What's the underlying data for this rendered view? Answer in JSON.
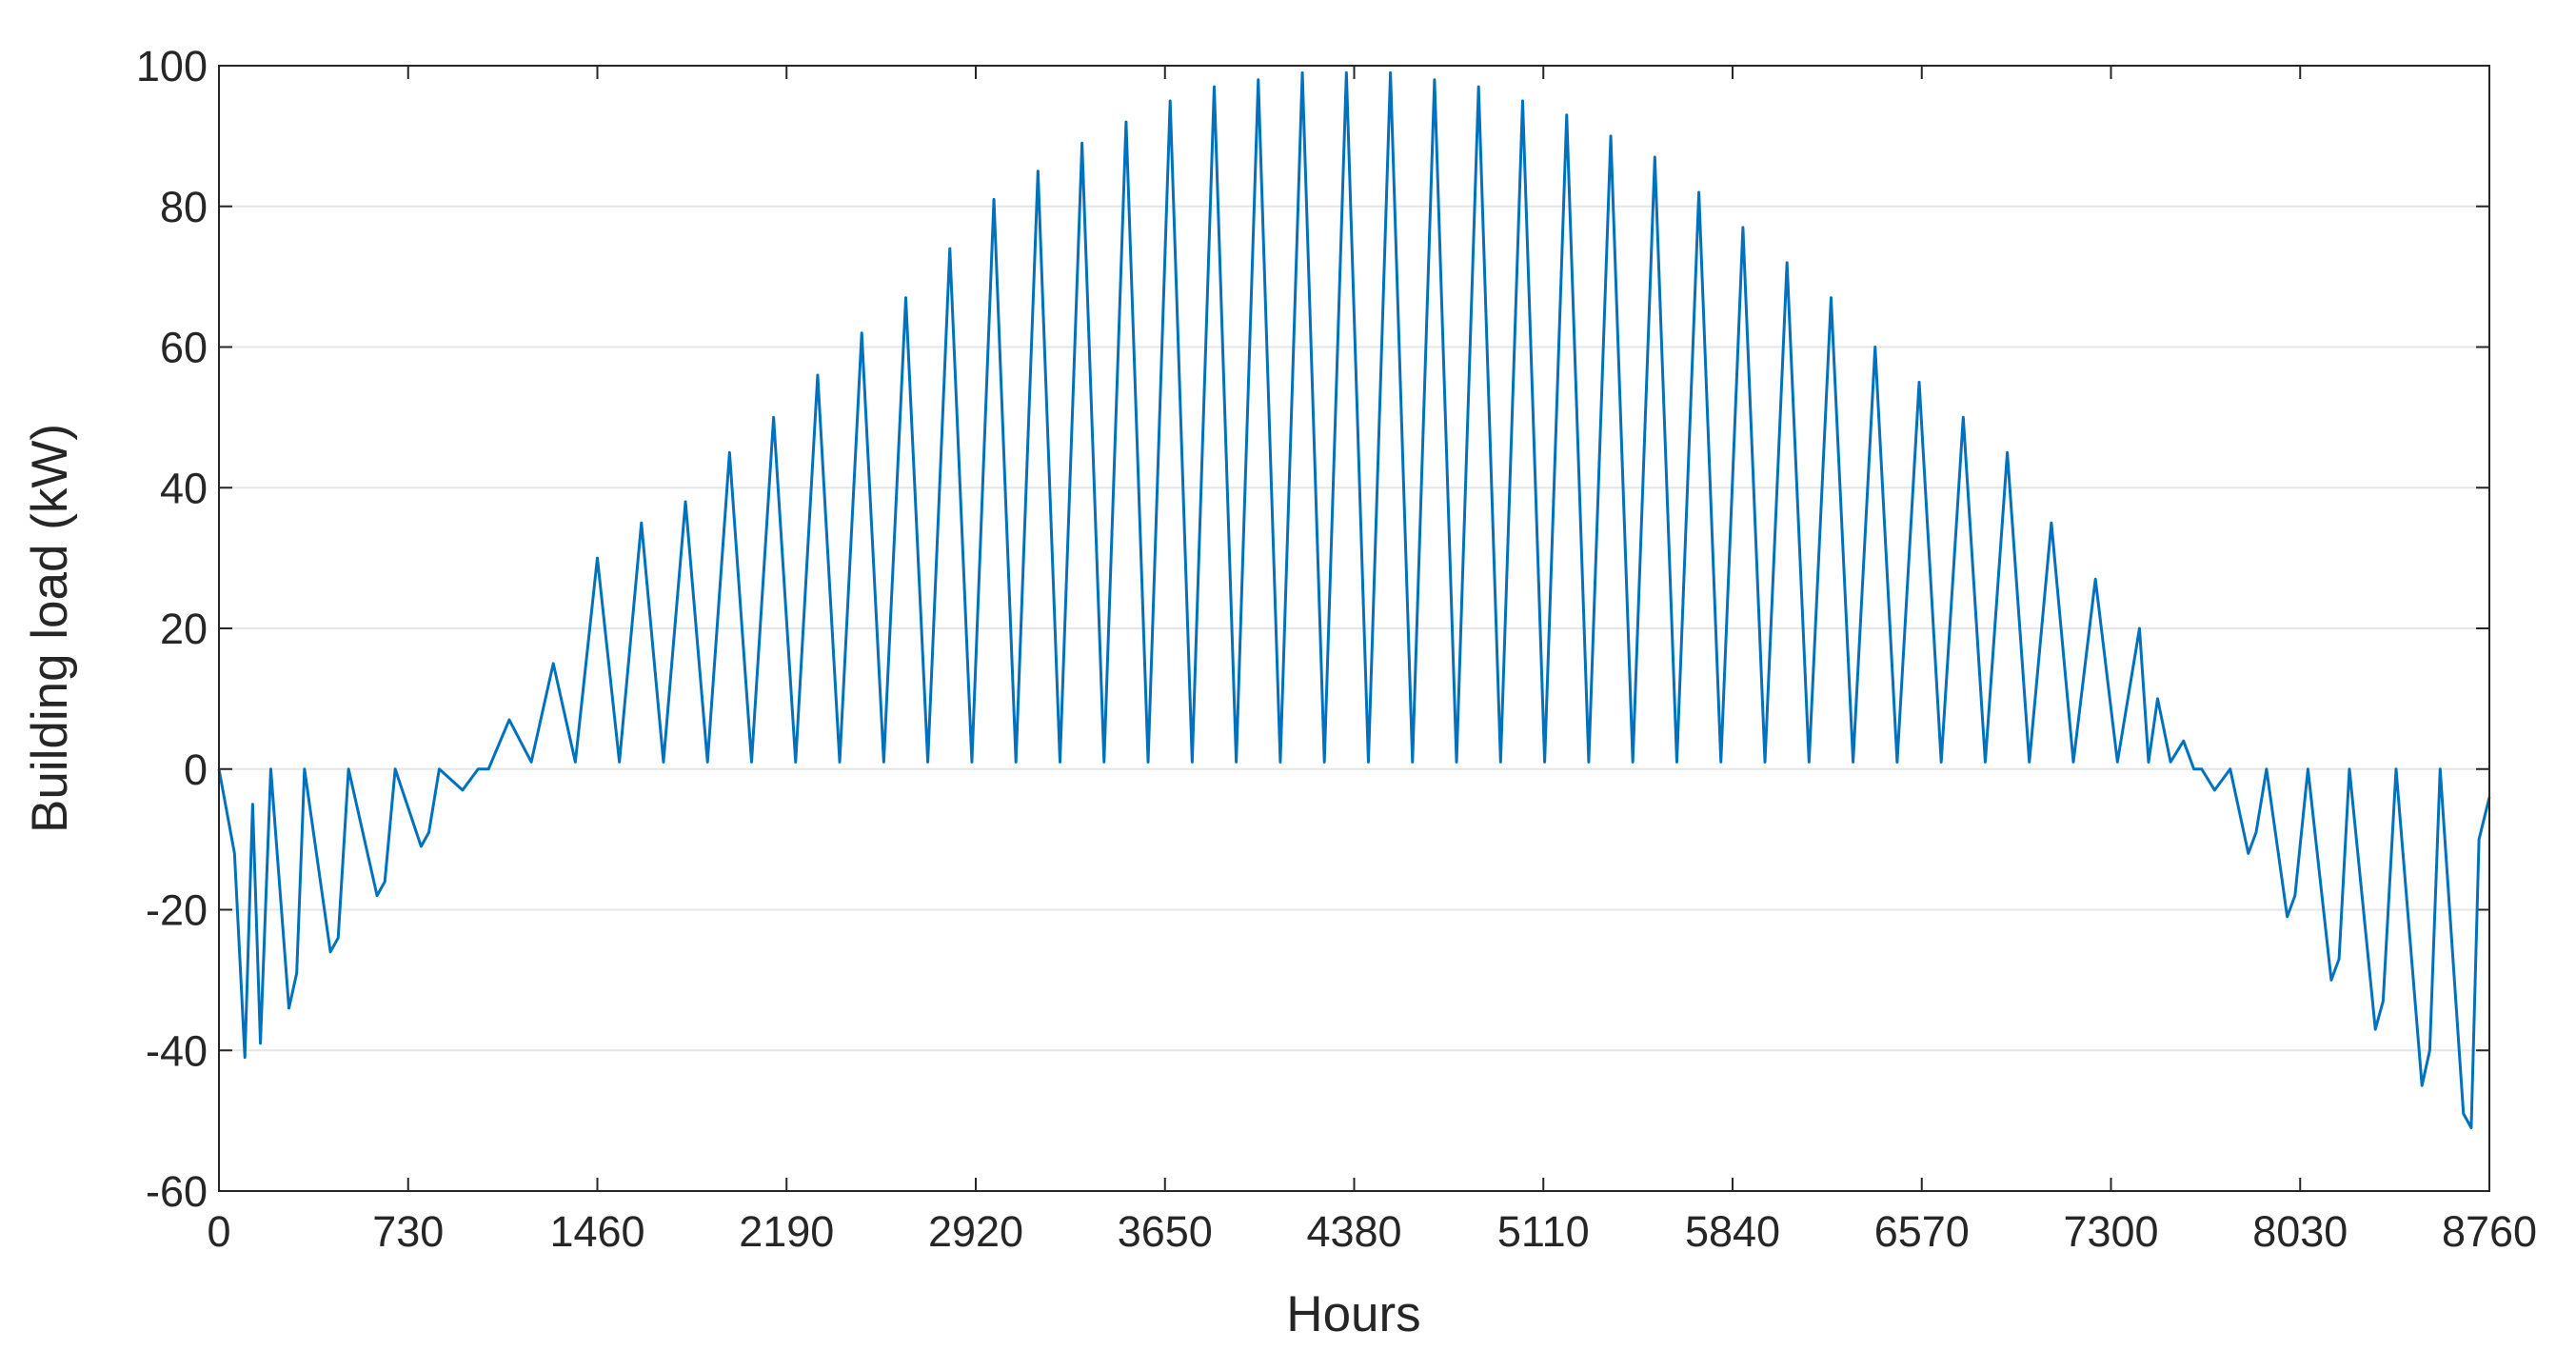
{
  "chart_data": {
    "type": "line",
    "xlabel": "Hours",
    "ylabel": "Building load (kW)",
    "x": [
      0,
      60,
      100,
      130,
      160,
      200,
      270,
      300,
      330,
      430,
      460,
      500,
      610,
      640,
      680,
      780,
      810,
      850,
      940,
      1000,
      1040,
      1120,
      1205,
      1290,
      1375,
      1460,
      1545,
      1630,
      1715,
      1800,
      1885,
      1970,
      2055,
      2140,
      2225,
      2310,
      2395,
      2480,
      2565,
      2650,
      2735,
      2820,
      2905,
      2990,
      3075,
      3160,
      3245,
      3330,
      3415,
      3500,
      3585,
      3670,
      3755,
      3840,
      3925,
      4010,
      4095,
      4180,
      4265,
      4350,
      4435,
      4520,
      4605,
      4690,
      4775,
      4860,
      4945,
      5030,
      5115,
      5200,
      5285,
      5370,
      5455,
      5540,
      5625,
      5710,
      5795,
      5880,
      5965,
      6050,
      6135,
      6220,
      6305,
      6390,
      6475,
      6560,
      6645,
      6730,
      6815,
      6900,
      6985,
      7070,
      7155,
      7240,
      7325,
      7410,
      7445,
      7480,
      7530,
      7580,
      7620,
      7650,
      7700,
      7760,
      7830,
      7860,
      7900,
      7980,
      8010,
      8060,
      8150,
      8180,
      8220,
      8320,
      8350,
      8400,
      8500,
      8530,
      8570,
      8660,
      8690,
      8720,
      8760
    ],
    "series": [
      {
        "color": "#0072bd",
        "values": [
          0,
          -12,
          -41,
          -5,
          -39,
          0,
          -34,
          -29,
          0,
          -26,
          -24,
          0,
          -18,
          -16,
          0,
          -11,
          -9,
          0,
          -3,
          0,
          0,
          7,
          1,
          15,
          1,
          30,
          1,
          35,
          1,
          38,
          1,
          45,
          1,
          50,
          1,
          56,
          1,
          62,
          1,
          67,
          1,
          74,
          1,
          81,
          1,
          85,
          1,
          89,
          1,
          92,
          1,
          95,
          1,
          97,
          1,
          98,
          1,
          99,
          1,
          99,
          1,
          99,
          1,
          98,
          1,
          97,
          1,
          95,
          1,
          93,
          1,
          90,
          1,
          87,
          1,
          82,
          1,
          77,
          1,
          72,
          1,
          67,
          1,
          60,
          1,
          55,
          1,
          50,
          1,
          45,
          1,
          35,
          1,
          27,
          1,
          20,
          1,
          10,
          1,
          4,
          0,
          0,
          -3,
          0,
          -12,
          -9,
          0,
          -21,
          -18,
          0,
          -30,
          -27,
          0,
          -37,
          -33,
          0,
          -45,
          -40,
          0,
          -49,
          -51,
          -10,
          -4
        ]
      }
    ],
    "xlim": [
      0,
      8760
    ],
    "xticks": [
      0,
      730,
      1460,
      2190,
      2920,
      3650,
      4380,
      5110,
      5840,
      6570,
      7300,
      8030,
      8760
    ],
    "ylim": [
      -60,
      100
    ],
    "yticks": [
      -60,
      -40,
      -20,
      0,
      20,
      40,
      60,
      80,
      100
    ],
    "grid": "y"
  }
}
